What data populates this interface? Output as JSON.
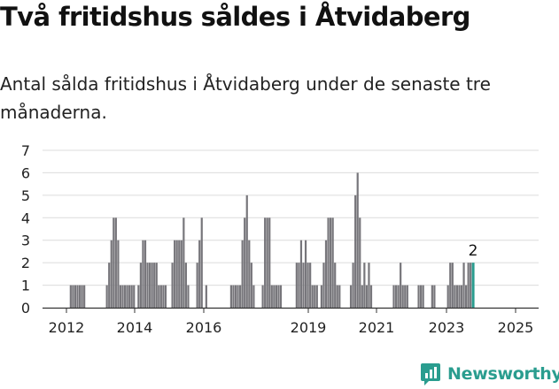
{
  "header": {
    "title": "Två fritidshus såldes i Åtvidaberg",
    "subtitle": "Antal sålda fritidshus i Åtvidaberg under de senaste tre månaderna."
  },
  "brand": {
    "name": "Newsworthy",
    "color": "#2a9d8f"
  },
  "chart_data": {
    "type": "bar",
    "y_ticks": [
      "0",
      "1",
      "2",
      "3",
      "4",
      "5",
      "6",
      "7"
    ],
    "x_ticks": [
      "2012",
      "2014",
      "2016",
      "2019",
      "2021",
      "2023",
      "2025"
    ],
    "ylim": [
      0,
      7
    ],
    "grid": true,
    "bar_color": "#77767b",
    "highlight_color": "#2a9d8f",
    "highlight_label": "2",
    "series": [
      {
        "values": [
          0,
          0,
          0,
          0,
          0,
          0,
          0,
          0,
          0,
          0,
          0,
          0,
          0,
          0,
          0,
          1,
          1,
          1,
          1,
          1,
          1,
          1,
          0,
          0,
          0,
          0,
          0,
          0,
          0,
          0,
          0,
          1,
          2,
          3,
          4,
          4,
          3,
          1,
          1,
          1,
          1,
          1,
          1,
          1,
          0,
          1,
          2,
          3,
          3,
          2,
          2,
          2,
          2,
          2,
          1,
          1,
          1,
          1,
          0,
          0,
          2,
          3,
          3,
          3,
          3,
          4,
          2,
          1,
          0,
          0,
          0,
          2,
          3,
          4,
          0,
          1,
          0,
          0,
          0,
          0,
          0,
          0,
          0,
          0,
          0,
          0,
          1,
          1,
          1,
          1,
          1,
          3,
          4,
          5,
          3,
          2,
          1,
          0,
          0,
          0,
          1,
          4,
          4,
          4,
          1,
          1,
          1,
          1,
          1,
          0,
          0,
          0,
          0,
          0,
          0,
          2,
          2,
          3,
          2,
          3,
          2,
          2,
          1,
          1,
          1,
          0,
          1,
          2,
          3,
          4,
          4,
          4,
          2,
          1,
          1,
          0,
          0,
          0,
          0,
          1,
          2,
          5,
          6,
          4,
          1,
          2,
          1,
          2,
          1,
          0,
          0,
          0,
          0,
          0,
          0,
          0,
          0,
          0,
          1,
          1,
          1,
          2,
          1,
          1,
          1,
          0,
          0,
          0,
          0,
          1,
          1,
          1,
          0,
          0,
          0,
          1,
          1,
          0,
          0,
          0,
          0,
          0,
          1,
          2,
          2,
          1,
          1,
          1,
          1,
          2,
          1,
          2,
          2
        ],
        "highlight_value": 2
      }
    ]
  }
}
